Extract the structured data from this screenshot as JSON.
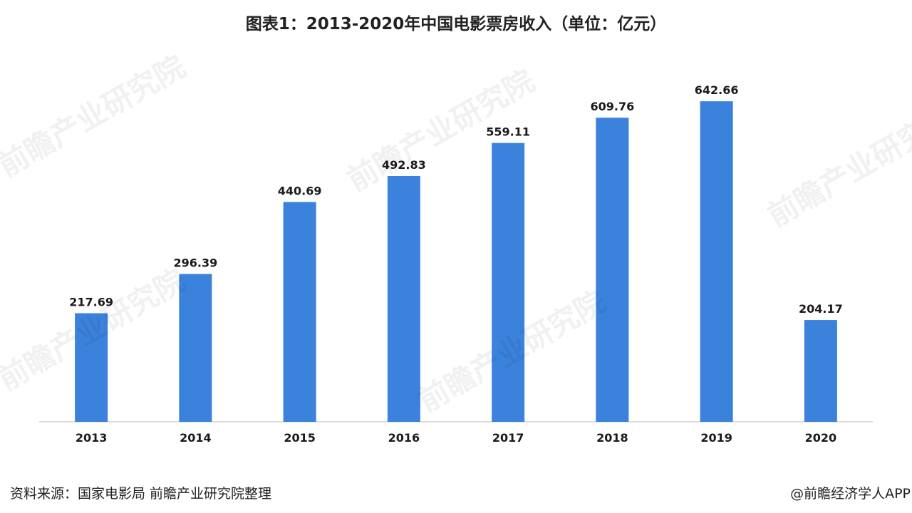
{
  "title": "图表1：2013-2020年中国电影票房收入（单位：亿元）",
  "source": "资料来源：国家电影局 前瞻产业研究院整理",
  "credit": "@前瞻经济学人APP",
  "watermark": "前瞻产业研究院",
  "colors": {
    "bar": "#3b82dc",
    "axis": "#d0d0d0",
    "label": "#1a1a1a"
  },
  "chart_data": {
    "type": "bar",
    "title": "图表1：2013-2020年中国电影票房收入（单位：亿元）",
    "categories": [
      "2013",
      "2014",
      "2015",
      "2016",
      "2017",
      "2018",
      "2019",
      "2020"
    ],
    "values": [
      217.69,
      296.39,
      440.69,
      492.83,
      559.11,
      609.76,
      642.66,
      204.17
    ],
    "value_labels": [
      "217.69",
      "296.39",
      "440.69",
      "492.83",
      "559.11",
      "609.76",
      "642.66",
      "204.17"
    ],
    "ylim": [
      0,
      700
    ],
    "grid": false,
    "legend": "none",
    "xlabel": "",
    "ylabel": ""
  }
}
